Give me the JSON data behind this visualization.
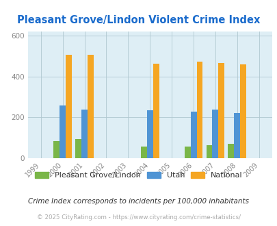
{
  "title": "Pleasant Grove/Lindon Violent Crime Index",
  "years": [
    1999,
    2000,
    2001,
    2002,
    2003,
    2004,
    2005,
    2006,
    2007,
    2008,
    2009
  ],
  "data_years": [
    2000,
    2001,
    2004,
    2006,
    2007,
    2008
  ],
  "pleasant_grove": [
    85,
    93,
    57,
    57,
    65,
    70
  ],
  "utah": [
    258,
    238,
    235,
    228,
    238,
    222
  ],
  "national": [
    507,
    506,
    463,
    474,
    467,
    458
  ],
  "color_pg": "#7ab648",
  "color_utah": "#4f94d4",
  "color_national": "#f5a623",
  "background_color": "#deeef5",
  "title_color": "#1a6bcc",
  "ylim": [
    0,
    620
  ],
  "yticks": [
    0,
    200,
    400,
    600
  ],
  "subtitle": "Crime Index corresponds to incidents per 100,000 inhabitants",
  "footer": "© 2025 CityRating.com - https://www.cityrating.com/crime-statistics/",
  "bar_width": 0.28,
  "legend_labels": [
    "Pleasant Grove/Lindon",
    "Utah",
    "National"
  ]
}
